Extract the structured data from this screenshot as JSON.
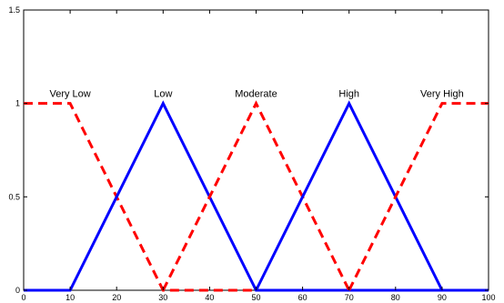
{
  "chart_data": {
    "type": "line",
    "title": "",
    "xlabel": "",
    "ylabel": "",
    "xlim": [
      0,
      100
    ],
    "ylim": [
      0,
      1.5
    ],
    "xticks": [
      0,
      10,
      20,
      30,
      40,
      50,
      60,
      70,
      80,
      90,
      100
    ],
    "yticks": [
      0,
      0.5,
      1,
      1.5
    ],
    "ytick_labels": [
      "0",
      "0.5",
      "1",
      "1.5"
    ],
    "grid": false,
    "legend": "none",
    "series": [
      {
        "name": "Very Low",
        "style": "dashed",
        "color": "#ff0000",
        "x": [
          0,
          10,
          30,
          100
        ],
        "y": [
          1,
          1,
          0,
          0
        ],
        "label_at": [
          10,
          1
        ]
      },
      {
        "name": "Low",
        "style": "solid",
        "color": "#0000ff",
        "x": [
          0,
          10,
          30,
          50,
          100
        ],
        "y": [
          0,
          0,
          1,
          0,
          0
        ],
        "label_at": [
          30,
          1
        ]
      },
      {
        "name": "Moderate",
        "style": "dashed",
        "color": "#ff0000",
        "x": [
          30,
          50,
          70
        ],
        "y": [
          0,
          1,
          0
        ],
        "label_at": [
          50,
          1
        ]
      },
      {
        "name": "High",
        "style": "solid",
        "color": "#0000ff",
        "x": [
          50,
          70,
          90,
          100
        ],
        "y": [
          0,
          1,
          0,
          0
        ],
        "label_at": [
          70,
          1
        ]
      },
      {
        "name": "Very High",
        "style": "dashed",
        "color": "#ff0000",
        "x": [
          70,
          90,
          100
        ],
        "y": [
          0,
          1,
          1
        ],
        "label_at": [
          90,
          1
        ]
      }
    ]
  }
}
